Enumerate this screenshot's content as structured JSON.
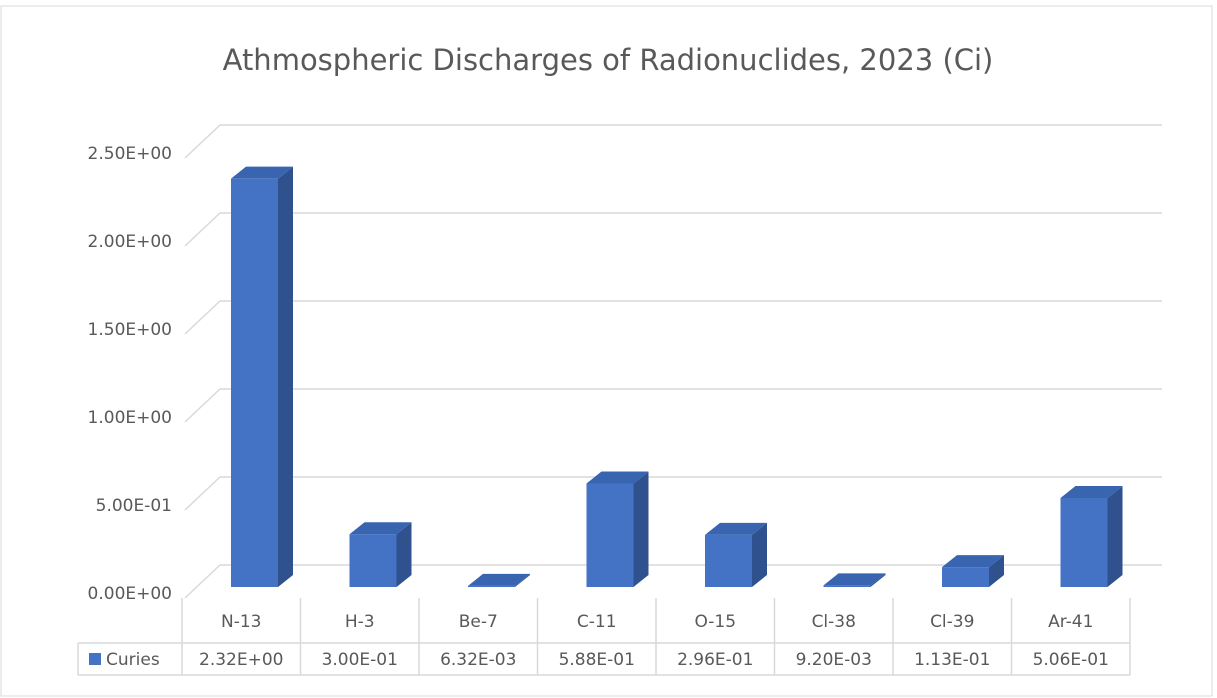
{
  "chart_data": {
    "type": "bar3d",
    "title": "Athmospheric Discharges of Radionuclides, 2023 (Ci)",
    "categories": [
      "N-13",
      "H-3",
      "Be-7",
      "C-11",
      "O-15",
      "Cl-38",
      "Cl-39",
      "Ar-41"
    ],
    "series": [
      {
        "name": "Curies",
        "color": "#4472c4",
        "values": [
          2.32,
          0.3,
          0.00632,
          0.588,
          0.296,
          0.0092,
          0.113,
          0.506
        ],
        "value_labels": [
          "2.32E+00",
          "3.00E-01",
          "6.32E-03",
          "5.88E-01",
          "2.96E-01",
          "9.20E-03",
          "1.13E-01",
          "5.06E-01"
        ]
      }
    ],
    "ylim": [
      0,
      2.5
    ],
    "yticks": [
      {
        "value": 0,
        "label": "0.00E+00"
      },
      {
        "value": 0.5,
        "label": "5.00E-01"
      },
      {
        "value": 1,
        "label": "1.00E+00"
      },
      {
        "value": 1.5,
        "label": "1.50E+00"
      },
      {
        "value": 2,
        "label": "2.00E+00"
      },
      {
        "value": 2.5,
        "label": "2.50E+00"
      }
    ],
    "grid": true,
    "data_table": true
  }
}
